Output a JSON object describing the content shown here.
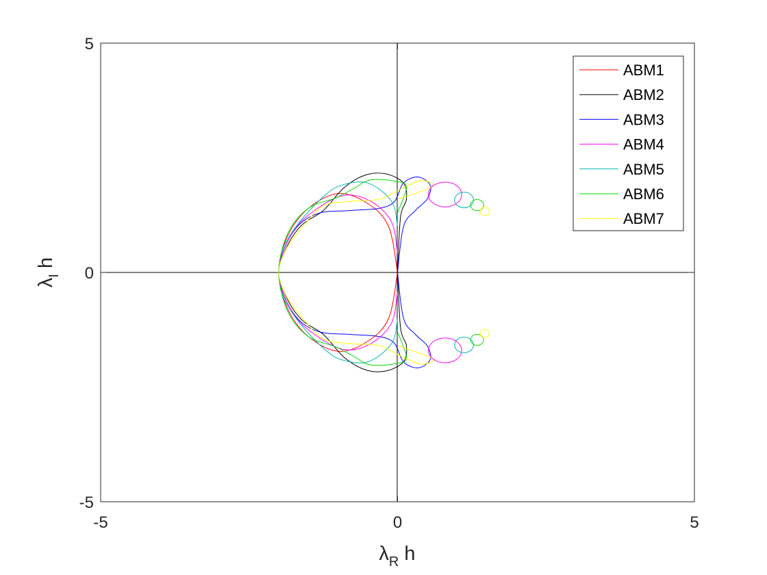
{
  "chart_data": {
    "type": "line",
    "title": "",
    "xlabel": {
      "symbol": "λ",
      "subscript": "R",
      "suffix": " h"
    },
    "ylabel": {
      "symbol": "λ",
      "subscript": "I",
      "suffix": " h"
    },
    "xlim": [
      -5,
      5
    ],
    "ylim": [
      -5,
      5
    ],
    "xticks": [
      "-5",
      "0",
      "5"
    ],
    "yticks": [
      "-5",
      "0",
      "5"
    ],
    "legend_position": "top-right",
    "grid": false,
    "series": [
      {
        "name": "ABM1",
        "color": "#ff0000",
        "points": [
          [
            0,
            0
          ],
          [
            -0.15,
            1.0
          ],
          [
            -0.5,
            1.5
          ],
          [
            -1.0,
            1.72
          ],
          [
            -1.5,
            1.4
          ],
          [
            -1.85,
            0.8
          ],
          [
            -2.0,
            0
          ],
          [
            -1.85,
            -0.8
          ],
          [
            -1.5,
            -1.4
          ],
          [
            -1.0,
            -1.72
          ],
          [
            -0.5,
            -1.5
          ],
          [
            -0.15,
            -1.0
          ],
          [
            0,
            0
          ]
        ]
      },
      {
        "name": "ABM2",
        "color": "#000000",
        "points": [
          [
            0,
            0
          ],
          [
            0.05,
            1.2
          ],
          [
            0.15,
            1.6
          ],
          [
            0.1,
            1.95
          ],
          [
            -0.2,
            2.15
          ],
          [
            -0.55,
            2.12
          ],
          [
            -0.9,
            1.85
          ],
          [
            -1.25,
            1.35
          ],
          [
            -1.6,
            1.05
          ],
          [
            -1.85,
            0.6
          ],
          [
            -2.0,
            0
          ],
          [
            -1.85,
            -0.6
          ],
          [
            -1.6,
            -1.05
          ],
          [
            -1.25,
            -1.35
          ],
          [
            -0.9,
            -1.85
          ],
          [
            -0.55,
            -2.12
          ],
          [
            -0.2,
            -2.15
          ],
          [
            0.1,
            -1.95
          ],
          [
            0.15,
            -1.6
          ],
          [
            0.05,
            -1.2
          ],
          [
            0,
            0
          ]
        ]
      },
      {
        "name": "ABM3",
        "color": "#0000ff",
        "points": [
          [
            0,
            0
          ],
          [
            0.1,
            1.0
          ],
          [
            0.3,
            1.35
          ],
          [
            0.5,
            1.6
          ],
          [
            0.55,
            1.9
          ],
          [
            0.35,
            2.08
          ],
          [
            0.1,
            1.95
          ],
          [
            -0.05,
            1.55
          ],
          [
            -0.3,
            1.4
          ],
          [
            -0.8,
            1.35
          ],
          [
            -1.3,
            1.3
          ],
          [
            -1.65,
            1.05
          ],
          [
            -1.9,
            0.55
          ],
          [
            -2.0,
            0
          ],
          [
            -1.9,
            -0.55
          ],
          [
            -1.65,
            -1.05
          ],
          [
            -1.3,
            -1.3
          ],
          [
            -0.8,
            -1.35
          ],
          [
            -0.3,
            -1.4
          ],
          [
            -0.05,
            -1.55
          ],
          [
            0.1,
            -1.95
          ],
          [
            0.35,
            -2.08
          ],
          [
            0.55,
            -1.9
          ],
          [
            0.5,
            -1.6
          ],
          [
            0.3,
            -1.35
          ],
          [
            0.1,
            -1.0
          ],
          [
            0,
            0
          ]
        ]
      },
      {
        "name": "ABM4",
        "color": "#ff00ff",
        "points": [
          [
            0,
            0.4
          ],
          [
            -0.1,
            1.1
          ],
          [
            -0.45,
            1.55
          ],
          [
            -0.9,
            1.68
          ],
          [
            -1.4,
            1.35
          ],
          [
            -1.78,
            0.85
          ],
          [
            -2.0,
            0
          ],
          [
            -1.78,
            -0.85
          ],
          [
            -1.4,
            -1.35
          ],
          [
            -0.9,
            -1.68
          ],
          [
            -0.45,
            -1.55
          ],
          [
            -0.1,
            -1.1
          ],
          [
            0,
            -0.4
          ]
        ]
      },
      {
        "name": "ABM5",
        "color": "#00b4b4",
        "points": [
          [
            0,
            1.0
          ],
          [
            -0.1,
            1.55
          ],
          [
            -0.5,
            1.95
          ],
          [
            -0.95,
            1.9
          ],
          [
            -1.25,
            1.65
          ],
          [
            -1.65,
            1.1
          ],
          [
            -1.92,
            0.55
          ],
          [
            -2.0,
            0
          ],
          [
            -1.92,
            -0.55
          ],
          [
            -1.65,
            -1.1
          ],
          [
            -1.25,
            -1.65
          ],
          [
            -0.95,
            -1.9
          ],
          [
            -0.5,
            -1.95
          ],
          [
            -0.1,
            -1.55
          ],
          [
            0,
            -1.0
          ]
        ]
      },
      {
        "name": "ABM6",
        "color": "#00dd00",
        "points": [
          [
            0,
            1.3
          ],
          [
            0.15,
            1.85
          ],
          [
            0,
            1.98
          ],
          [
            -0.45,
            2.02
          ],
          [
            -0.75,
            1.82
          ],
          [
            -1.05,
            1.62
          ],
          [
            -1.5,
            1.4
          ],
          [
            -1.85,
            0.85
          ],
          [
            -2.0,
            0
          ],
          [
            -1.85,
            -0.85
          ],
          [
            -1.5,
            -1.4
          ],
          [
            -1.05,
            -1.62
          ],
          [
            -0.75,
            -1.82
          ],
          [
            -0.45,
            -2.02
          ],
          [
            0,
            -1.98
          ],
          [
            0.15,
            -1.85
          ],
          [
            0,
            -1.3
          ]
        ]
      },
      {
        "name": "ABM7",
        "color": "#ffff00",
        "points": [
          [
            0,
            1.6
          ],
          [
            0.35,
            1.75
          ],
          [
            0.6,
            1.9
          ],
          [
            0.4,
            2.0
          ],
          [
            0.1,
            1.85
          ],
          [
            -0.3,
            1.6
          ],
          [
            -0.8,
            1.55
          ],
          [
            -1.25,
            1.45
          ],
          [
            -1.6,
            1.0
          ],
          [
            -1.88,
            0.5
          ],
          [
            -2.0,
            0
          ],
          [
            -1.88,
            -0.5
          ],
          [
            -1.6,
            -1.0
          ],
          [
            -1.25,
            -1.45
          ],
          [
            -0.8,
            -1.55
          ],
          [
            -0.3,
            -1.6
          ],
          [
            0.1,
            -1.85
          ],
          [
            0.4,
            -2.0
          ],
          [
            0.6,
            -1.9
          ],
          [
            0.35,
            -1.75
          ],
          [
            0,
            -1.6
          ]
        ]
      }
    ],
    "lobes": [
      {
        "series": "ABM4",
        "cx": 0.8,
        "cy": 1.7,
        "rx": 0.28,
        "ry": 0.27
      },
      {
        "series": "ABM5",
        "cx": 1.12,
        "cy": 1.58,
        "rx": 0.16,
        "ry": 0.17
      },
      {
        "series": "ABM6",
        "cx": 1.34,
        "cy": 1.47,
        "rx": 0.11,
        "ry": 0.12
      },
      {
        "series": "ABM7",
        "cx": 1.47,
        "cy": 1.33,
        "rx": 0.08,
        "ry": 0.09
      }
    ]
  }
}
